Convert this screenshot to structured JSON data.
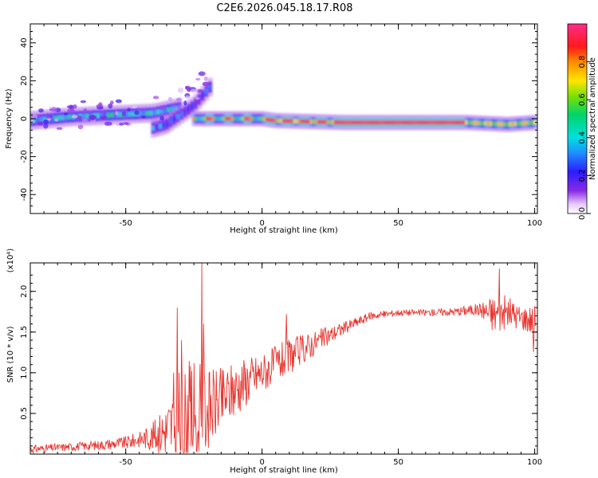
{
  "title": "C2E6.2026.045.18.17.R08",
  "chart_data": [
    {
      "type": "heatmap",
      "xlabel": "Height of straight line (km)",
      "ylabel": "Frequency (Hz)",
      "xlim": [
        -85,
        101
      ],
      "ylim": [
        -50,
        50
      ],
      "xticks": [
        -50,
        0,
        50,
        100
      ],
      "yticks": [
        40,
        20,
        0,
        -20,
        -40
      ],
      "xtick_labels": [
        "-50",
        "0",
        "50",
        "100"
      ],
      "ytick_labels": [
        "40",
        "20",
        "0",
        "-20",
        "-40"
      ],
      "colorbar": {
        "label": "Normalized spectral amplitude",
        "range": [
          0,
          1
        ],
        "ticks": [
          0.0,
          0.2,
          0.4,
          0.6,
          0.8
        ],
        "tick_labels": [
          "0.0",
          "0.2",
          "0.4",
          "0.6",
          "0.8"
        ]
      },
      "ridges": [
        {
          "name": "main band",
          "points": [
            [
              -85,
              -1
            ],
            [
              -70,
              1
            ],
            [
              -55,
              2
            ],
            [
              -40,
              3
            ],
            [
              -30,
              6
            ]
          ],
          "amplitude": 0.35
        },
        {
          "name": "diverging branch",
          "points": [
            [
              -40,
              -5
            ],
            [
              -35,
              -3
            ],
            [
              -30,
              2
            ],
            [
              -25,
              7
            ],
            [
              -19,
              17
            ]
          ],
          "amplitude": 0.2
        },
        {
          "name": "steady trace",
          "points": [
            [
              -25,
              0
            ],
            [
              0,
              0
            ],
            [
              5,
              -1
            ],
            [
              30,
              -2
            ],
            [
              60,
              -2
            ],
            [
              75,
              -2
            ],
            [
              90,
              -3
            ],
            [
              100,
              -2
            ]
          ],
          "amplitude": 0.85
        }
      ]
    },
    {
      "type": "line",
      "xlabel": "Height of straight line (km)",
      "ylabel": "SNR (10 * v/v)",
      "multiplier": "(x10⁴)",
      "xlim": [
        -85,
        101
      ],
      "ylim": [
        0,
        2.35
      ],
      "xticks": [
        -50,
        0,
        50,
        100
      ],
      "yticks": [
        0.5,
        1.0,
        1.5,
        2.0
      ],
      "xtick_labels": [
        "-50",
        "0",
        "50",
        "100"
      ],
      "ytick_labels": [
        "0.5",
        "1.0",
        "1.5",
        "2.0"
      ],
      "series": [
        {
          "name": "SNR",
          "color": "#e8352f",
          "envelope": {
            "x": [
              -85,
              -70,
              -60,
              -50,
              -45,
              -40,
              -35,
              -30,
              -25,
              -20,
              -15,
              -10,
              -5,
              0,
              10,
              20,
              30,
              40,
              50,
              60,
              70,
              80,
              85,
              90,
              95,
              100
            ],
            "y": [
              0.06,
              0.09,
              0.11,
              0.14,
              0.18,
              0.22,
              0.3,
              0.4,
              0.48,
              0.55,
              0.66,
              0.8,
              0.92,
              1.0,
              1.2,
              1.38,
              1.55,
              1.7,
              1.74,
              1.74,
              1.75,
              1.78,
              1.72,
              1.75,
              1.68,
              1.65
            ],
            "amp": [
              0.05,
              0.05,
              0.06,
              0.08,
              0.1,
              0.18,
              0.35,
              0.7,
              0.7,
              0.5,
              0.4,
              0.35,
              0.3,
              0.25,
              0.22,
              0.15,
              0.08,
              0.05,
              0.04,
              0.04,
              0.05,
              0.08,
              0.25,
              0.2,
              0.15,
              0.2
            ]
          },
          "spikes": [
            [
              -31,
              1.8
            ],
            [
              -29.5,
              1.4
            ],
            [
              -22,
              2.35
            ],
            [
              -21.5,
              1.6
            ],
            [
              -32.5,
              1.0
            ],
            [
              9,
              1.72
            ],
            [
              87,
              2.28
            ],
            [
              99.5,
              1.25
            ]
          ]
        }
      ]
    }
  ]
}
